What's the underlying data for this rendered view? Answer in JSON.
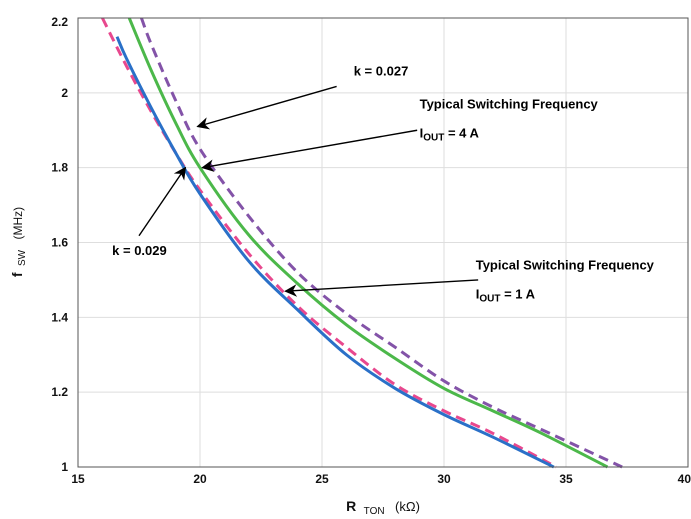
{
  "chart_data": {
    "type": "line",
    "title": "",
    "xlabel": {
      "main": "R",
      "sub": "TON",
      "unit": "(kΩ)"
    },
    "ylabel": {
      "main": "f",
      "sub": "SW",
      "unit": "(MHz)"
    },
    "xlim": [
      15,
      40
    ],
    "ylim": [
      1,
      2.2
    ],
    "xticks": [
      15,
      20,
      25,
      30,
      35,
      40
    ],
    "yticks": [
      1,
      1.2,
      1.4,
      1.6,
      1.8,
      2,
      2.2
    ],
    "xtick_labels": [
      "15",
      "20",
      "25",
      "30",
      "35",
      "40"
    ],
    "ytick_labels": [
      "1",
      "1.2",
      "1.4",
      "1.6",
      "1.8",
      "2",
      "2.2"
    ],
    "grid": true,
    "series": [
      {
        "name": "k = 0.029",
        "color": "#e8488e",
        "dash": true,
        "points": [
          [
            16.0,
            2.2
          ],
          [
            17.0,
            2.07
          ],
          [
            18.0,
            1.95
          ],
          [
            19.0,
            1.84
          ],
          [
            20.0,
            1.74
          ],
          [
            22.0,
            1.57
          ],
          [
            24.0,
            1.43
          ],
          [
            26.0,
            1.32
          ],
          [
            28.0,
            1.22
          ],
          [
            30.0,
            1.15
          ],
          [
            32.0,
            1.09
          ],
          [
            34.6,
            1.0
          ]
        ]
      },
      {
        "name": "Typical Switching Frequency I OUT = 1 A",
        "color": "#2a70c8",
        "dash": false,
        "points": [
          [
            16.6,
            2.15
          ],
          [
            17.0,
            2.09
          ],
          [
            18.0,
            1.96
          ],
          [
            19.0,
            1.84
          ],
          [
            20.0,
            1.73
          ],
          [
            22.0,
            1.55
          ],
          [
            24.0,
            1.42
          ],
          [
            26.0,
            1.3
          ],
          [
            28.0,
            1.21
          ],
          [
            30.0,
            1.14
          ],
          [
            32.0,
            1.08
          ],
          [
            34.5,
            1.0
          ]
        ]
      },
      {
        "name": "Typical Switching Frequency I OUT = 4 A",
        "color": "#4cb84a",
        "dash": false,
        "points": [
          [
            17.1,
            2.2
          ],
          [
            18.0,
            2.06
          ],
          [
            19.0,
            1.92
          ],
          [
            20.0,
            1.8
          ],
          [
            22.0,
            1.62
          ],
          [
            24.0,
            1.49
          ],
          [
            26.0,
            1.38
          ],
          [
            28.0,
            1.29
          ],
          [
            30.0,
            1.21
          ],
          [
            32.0,
            1.15
          ],
          [
            34.0,
            1.09
          ],
          [
            36.7,
            1.0
          ]
        ]
      },
      {
        "name": "k = 0.027",
        "color": "#8353a8",
        "dash": true,
        "points": [
          [
            17.6,
            2.2
          ],
          [
            18.0,
            2.13
          ],
          [
            19.0,
            1.98
          ],
          [
            20.0,
            1.85
          ],
          [
            22.0,
            1.67
          ],
          [
            24.0,
            1.52
          ],
          [
            26.0,
            1.41
          ],
          [
            28.0,
            1.32
          ],
          [
            30.0,
            1.23
          ],
          [
            32.0,
            1.16
          ],
          [
            34.0,
            1.1
          ],
          [
            37.3,
            1.0
          ]
        ]
      }
    ],
    "annotations": [
      {
        "label": "k = 0.027",
        "text_x": 26.3,
        "text_y": 2.046,
        "arrow_from": [
          25.6,
          2.017
        ],
        "arrow_to": [
          19.9,
          1.91
        ]
      },
      {
        "label": "Typical Switching Frequency",
        "sub_main": "I",
        "sub": "OUT",
        "sub_rest": " = 4 A",
        "text_x": 29.0,
        "text_y": 1.958,
        "text2_y": 1.881,
        "arrow_from": [
          28.9,
          1.9
        ],
        "arrow_to": [
          20.1,
          1.8
        ]
      },
      {
        "label": "k = 0.029",
        "text_x": 16.4,
        "text_y": 1.566,
        "arrow_from": [
          17.5,
          1.618
        ],
        "arrow_to": [
          19.4,
          1.8
        ]
      },
      {
        "label": "Typical Switching Frequency",
        "sub_main": "I",
        "sub": "OUT",
        "sub_rest": " = 1 A",
        "text_x": 31.3,
        "text_y": 1.528,
        "text2_y": 1.45,
        "arrow_from": [
          31.4,
          1.5
        ],
        "arrow_to": [
          23.5,
          1.47
        ]
      }
    ]
  }
}
